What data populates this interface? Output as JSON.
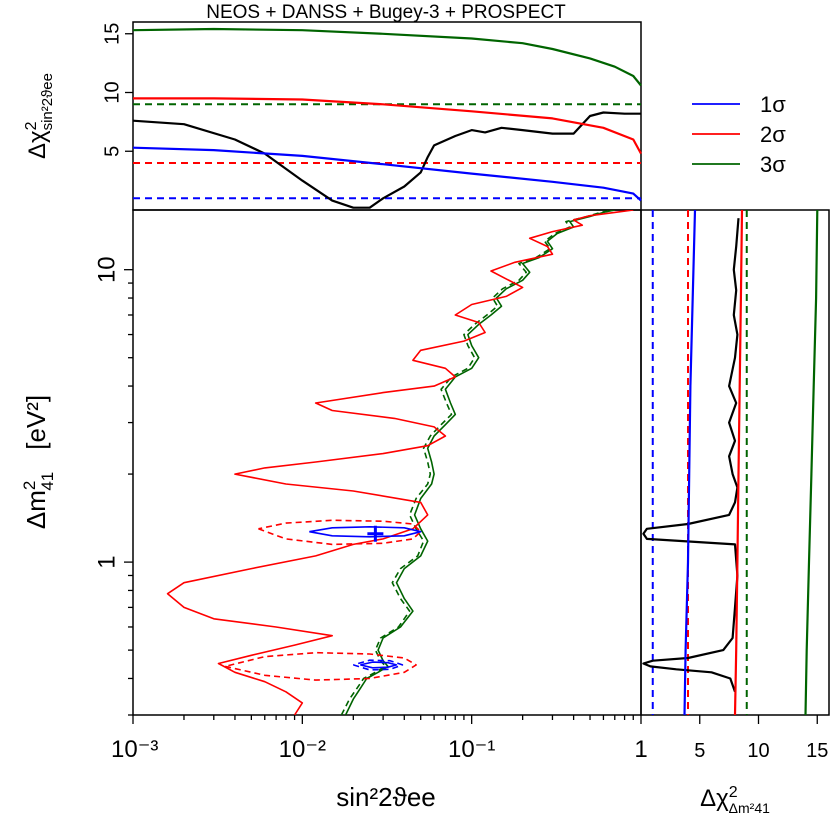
{
  "colors": {
    "sigma1": "#0000ff",
    "sigma2": "#ff0000",
    "sigma3": "#006400",
    "bestfit": "#000000"
  },
  "chart_data": [
    {
      "panel": "top",
      "type": "line",
      "title": "NEOS + DANSS + Bugey-3 + PROSPECT",
      "ylabel": "Δχ²_sin²2ϑee",
      "xscale": "log",
      "xlim": [
        0.001,
        1
      ],
      "ylim": [
        0,
        16
      ],
      "y_ticks": [
        "5",
        "10",
        "15"
      ],
      "thresholds": [
        {
          "name": "1σ",
          "value": 1.0
        },
        {
          "name": "2σ",
          "value": 4.0
        },
        {
          "name": "3σ",
          "value": 9.0
        }
      ],
      "series": [
        {
          "id": "chi2_total",
          "style": "solid",
          "color": "#000000",
          "x": [
            0.001,
            0.002,
            0.004,
            0.006,
            0.01,
            0.015,
            0.02,
            0.025,
            0.03,
            0.04,
            0.05,
            0.055,
            0.06,
            0.08,
            0.1,
            0.12,
            0.15,
            0.2,
            0.3,
            0.4,
            0.5,
            0.6,
            0.8,
            1
          ],
          "y": [
            7.6,
            7.3,
            6.0,
            4.8,
            2.5,
            0.8,
            0.2,
            0.2,
            1.0,
            2.0,
            3.2,
            4.5,
            5.5,
            6.3,
            6.8,
            6.6,
            7.0,
            6.8,
            6.5,
            6.5,
            8.0,
            8.3,
            8.2,
            8.2
          ]
        },
        {
          "id": "chi2_1sigma",
          "style": "solid",
          "color": "#0000ff",
          "x": [
            0.001,
            0.003,
            0.01,
            0.03,
            0.1,
            0.3,
            0.6,
            0.9,
            1
          ],
          "y": [
            5.3,
            5.1,
            4.6,
            3.9,
            3.1,
            2.4,
            1.9,
            1.4,
            0.8
          ]
        },
        {
          "id": "chi2_2sigma",
          "style": "solid",
          "color": "#ff0000",
          "x": [
            0.001,
            0.003,
            0.01,
            0.03,
            0.1,
            0.3,
            0.6,
            0.9,
            1
          ],
          "y": [
            9.5,
            9.5,
            9.4,
            9.0,
            8.4,
            7.8,
            7.0,
            6.0,
            4.8
          ]
        },
        {
          "id": "chi2_3sigma",
          "style": "solid",
          "color": "#006400",
          "x": [
            0.001,
            0.003,
            0.01,
            0.03,
            0.1,
            0.2,
            0.3,
            0.5,
            0.7,
            0.9,
            1
          ],
          "y": [
            15.3,
            15.4,
            15.3,
            15.0,
            14.6,
            14.2,
            13.7,
            12.9,
            12.2,
            11.4,
            10.6
          ]
        }
      ]
    },
    {
      "panel": "main",
      "type": "line",
      "xlabel": "sin²2ϑee",
      "ylabel": "Δm²41 [eV²]",
      "xscale": "log",
      "yscale": "log",
      "xlim": [
        0.001,
        1
      ],
      "ylim": [
        0.3,
        16
      ],
      "x_ticks": [
        "10⁻³",
        "10⁻²",
        "10⁻¹",
        "1"
      ],
      "y_ticks": [
        "1",
        "10"
      ],
      "best_fit": {
        "x": 0.027,
        "y": 1.25
      },
      "series": [
        {
          "id": "contour_3sigma",
          "style": "solid",
          "color": "#006400",
          "x": [
            0.018,
            0.02,
            0.022,
            0.024,
            0.028,
            0.032,
            0.03,
            0.028,
            0.03,
            0.038,
            0.045,
            0.04,
            0.036,
            0.04,
            0.05,
            0.055,
            0.05,
            0.046,
            0.05,
            0.058,
            0.06,
            0.058,
            0.055,
            0.06,
            0.07,
            0.08,
            0.075,
            0.07,
            0.08,
            0.1,
            0.11,
            0.1,
            0.095,
            0.11,
            0.13,
            0.15,
            0.14,
            0.16,
            0.2,
            0.22,
            0.2,
            0.25,
            0.3,
            0.28,
            0.32,
            0.4,
            0.38,
            0.5,
            0.6,
            0.7
          ],
          "y": [
            0.3,
            0.34,
            0.37,
            0.4,
            0.42,
            0.44,
            0.46,
            0.5,
            0.55,
            0.6,
            0.68,
            0.75,
            0.85,
            0.95,
            1.05,
            1.18,
            1.3,
            1.45,
            1.65,
            1.85,
            2.0,
            2.2,
            2.45,
            2.7,
            2.95,
            3.2,
            3.5,
            3.9,
            4.3,
            4.6,
            5.0,
            5.5,
            6.0,
            6.5,
            7.0,
            7.5,
            8.0,
            8.6,
            9.2,
            9.8,
            10.5,
            11.0,
            11.8,
            12.5,
            13.3,
            14.0,
            14.6,
            15.2,
            15.7,
            16.0
          ]
        },
        {
          "id": "contour_3sigma_dashed",
          "style": "dashed",
          "color": "#006400",
          "x": [
            0.017,
            0.019,
            0.021,
            0.023,
            0.027,
            0.031,
            0.029,
            0.027,
            0.029,
            0.037,
            0.043,
            0.038,
            0.034,
            0.038,
            0.048,
            0.052,
            0.047,
            0.043,
            0.047,
            0.055,
            0.057,
            0.055,
            0.052,
            0.057,
            0.066,
            0.076,
            0.071,
            0.066,
            0.076,
            0.095,
            0.104,
            0.095,
            0.09,
            0.104,
            0.123,
            0.142,
            0.133,
            0.152,
            0.19,
            0.21,
            0.19,
            0.24,
            0.29,
            0.27,
            0.31,
            0.38,
            0.36,
            0.48,
            0.58,
            0.68
          ],
          "y": [
            0.3,
            0.34,
            0.37,
            0.4,
            0.42,
            0.44,
            0.46,
            0.5,
            0.55,
            0.6,
            0.68,
            0.75,
            0.85,
            0.95,
            1.05,
            1.18,
            1.3,
            1.45,
            1.65,
            1.85,
            2.0,
            2.2,
            2.45,
            2.7,
            2.95,
            3.2,
            3.5,
            3.9,
            4.3,
            4.6,
            5.0,
            5.5,
            6.0,
            6.5,
            7.0,
            7.5,
            8.0,
            8.6,
            9.2,
            9.8,
            10.5,
            11.0,
            11.8,
            12.5,
            13.3,
            14.0,
            14.6,
            15.2,
            15.7,
            16.0
          ]
        },
        {
          "id": "contour_2sigma",
          "style": "solid",
          "color": "#ff0000",
          "x": [
            0.009,
            0.01,
            0.008,
            0.006,
            0.004,
            0.0032,
            0.005,
            0.009,
            0.015,
            0.007,
            0.003,
            0.002,
            0.0016,
            0.002,
            0.005,
            0.012,
            0.02,
            0.03,
            0.045,
            0.055,
            0.05,
            0.02,
            0.008,
            0.004,
            0.006,
            0.012,
            0.03,
            0.055,
            0.07,
            0.06,
            0.035,
            0.015,
            0.012,
            0.03,
            0.06,
            0.08,
            0.07,
            0.045,
            0.05,
            0.09,
            0.12,
            0.11,
            0.08,
            0.1,
            0.16,
            0.2,
            0.16,
            0.13,
            0.18,
            0.3,
            0.28,
            0.22,
            0.3,
            0.45,
            0.4,
            0.5,
            0.7,
            0.9
          ],
          "y": [
            0.3,
            0.33,
            0.36,
            0.39,
            0.42,
            0.45,
            0.48,
            0.52,
            0.56,
            0.6,
            0.64,
            0.7,
            0.78,
            0.85,
            0.95,
            1.05,
            1.15,
            1.2,
            1.3,
            1.45,
            1.6,
            1.75,
            1.85,
            2.0,
            2.1,
            2.2,
            2.35,
            2.5,
            2.7,
            2.9,
            3.1,
            3.3,
            3.5,
            3.8,
            4.0,
            4.3,
            4.6,
            4.9,
            5.3,
            5.7,
            6.1,
            6.6,
            7.0,
            7.6,
            8.1,
            8.7,
            9.3,
            9.9,
            10.6,
            11.3,
            12.0,
            12.8,
            13.5,
            14.2,
            14.8,
            15.3,
            15.7,
            16.0
          ]
        },
        {
          "id": "contour_2sigma_island",
          "style": "dashed",
          "color": "#ff0000",
          "x": [
            0.0055,
            0.008,
            0.015,
            0.03,
            0.045,
            0.05,
            0.045,
            0.03,
            0.015,
            0.008,
            0.0055
          ],
          "y": [
            1.3,
            1.2,
            1.15,
            1.16,
            1.2,
            1.27,
            1.35,
            1.38,
            1.39,
            1.36,
            1.3
          ]
        },
        {
          "id": "contour_2sigma_low",
          "style": "dashed",
          "color": "#ff0000",
          "x": [
            0.0035,
            0.006,
            0.012,
            0.025,
            0.04,
            0.047,
            0.04,
            0.025,
            0.012,
            0.006,
            0.0035
          ],
          "y": [
            0.44,
            0.41,
            0.395,
            0.4,
            0.42,
            0.445,
            0.47,
            0.485,
            0.49,
            0.475,
            0.44
          ]
        },
        {
          "id": "contour_1sigma",
          "style": "solid",
          "color": "#0000ff",
          "x": [
            0.011,
            0.015,
            0.025,
            0.04,
            0.05,
            0.04,
            0.025,
            0.015,
            0.011
          ],
          "y": [
            1.27,
            1.23,
            1.22,
            1.23,
            1.27,
            1.31,
            1.32,
            1.31,
            1.27
          ]
        },
        {
          "id": "contour_1sigma_low",
          "style": "solid",
          "color": "#0000ff",
          "x": [
            0.022,
            0.026,
            0.032,
            0.036,
            0.032,
            0.026,
            0.022
          ],
          "y": [
            0.445,
            0.435,
            0.437,
            0.445,
            0.453,
            0.455,
            0.445
          ]
        },
        {
          "id": "contour_1sigma_low_dashed",
          "style": "dashed",
          "color": "#0000ff",
          "x": [
            0.02,
            0.025,
            0.033,
            0.039,
            0.033,
            0.025,
            0.02
          ],
          "y": [
            0.445,
            0.428,
            0.43,
            0.445,
            0.46,
            0.462,
            0.445
          ]
        }
      ]
    },
    {
      "panel": "right",
      "type": "line",
      "xlabel": "Δχ²_Δm²41",
      "xlim": [
        0,
        16
      ],
      "yscale": "log",
      "ylim": [
        0.3,
        16
      ],
      "x_ticks": [
        "5",
        "10",
        "15"
      ],
      "thresholds": [
        {
          "name": "1σ",
          "value": 1.0
        },
        {
          "name": "2σ",
          "value": 4.0
        },
        {
          "name": "3σ",
          "value": 9.0
        }
      ],
      "series": [
        {
          "id": "chi2_total_dm",
          "style": "solid",
          "color": "#000000",
          "x": [
            8.0,
            7.8,
            7.6,
            6.0,
            3.0,
            0.8,
            0.2,
            1.0,
            4.0,
            7.0,
            7.8,
            8.0,
            8.2,
            8.0,
            0.5,
            0.2,
            0.5,
            4.0,
            7.5,
            8.0,
            8.2,
            7.8,
            7.5,
            8.0,
            7.5,
            8.1,
            7.5,
            8.0,
            8.2,
            7.9,
            8.1,
            7.9,
            8.1,
            8.3
          ],
          "y": [
            0.36,
            0.38,
            0.4,
            0.42,
            0.43,
            0.44,
            0.45,
            0.46,
            0.47,
            0.5,
            0.55,
            0.7,
            0.9,
            1.15,
            1.2,
            1.25,
            1.3,
            1.35,
            1.45,
            1.6,
            1.8,
            2.0,
            2.3,
            2.6,
            3.0,
            3.5,
            4.0,
            5.0,
            6.0,
            7.0,
            8.5,
            10.0,
            12.0,
            15.0
          ]
        },
        {
          "id": "chi2_1sigma_dm",
          "style": "solid",
          "color": "#0000ff",
          "x": [
            3.7,
            3.8,
            4.0,
            4.1,
            4.2,
            4.4,
            4.6
          ],
          "y": [
            0.3,
            0.5,
            1.0,
            2.0,
            4.0,
            8.0,
            16.0
          ]
        },
        {
          "id": "chi2_2sigma_dm",
          "style": "solid",
          "color": "#ff0000",
          "x": [
            8.0,
            8.1,
            8.2,
            8.3,
            8.4,
            8.5,
            8.6
          ],
          "y": [
            0.3,
            0.5,
            1.0,
            2.0,
            4.0,
            8.0,
            16.0
          ]
        },
        {
          "id": "chi2_3sigma_dm",
          "style": "solid",
          "color": "#006400",
          "x": [
            14.0,
            14.1,
            14.3,
            14.5,
            14.7,
            14.9,
            15.0
          ],
          "y": [
            0.3,
            0.5,
            1.0,
            2.0,
            4.0,
            8.0,
            16.0
          ]
        }
      ]
    }
  ],
  "legend": {
    "placement": "top-right",
    "items": [
      {
        "label": "1σ",
        "color": "#0000ff"
      },
      {
        "label": "2σ",
        "color": "#ff0000"
      },
      {
        "label": "3σ",
        "color": "#006400"
      }
    ]
  },
  "labels": {
    "title": "NEOS + DANSS + Bugey-3 + PROSPECT",
    "top_ylabel_main": "Δχ",
    "top_ylabel_sup": "2",
    "top_ylabel_sub": "sin²2ϑee",
    "main_ylabel_main": "Δm",
    "main_ylabel_sup": "2",
    "main_ylabel_sub": "41",
    "main_ylabel_unit": "[eV²]",
    "main_xlabel": "sin²2ϑee",
    "right_xlabel_main": "Δχ",
    "right_xlabel_sup": "2",
    "right_xlabel_sub": "Δm²41"
  }
}
